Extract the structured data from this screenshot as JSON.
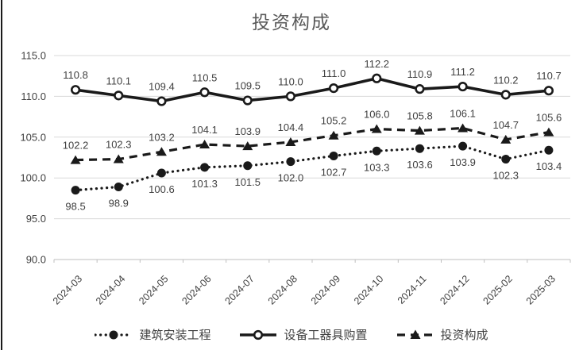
{
  "chart": {
    "colors": {
      "line": "#1a1a1a",
      "grid": "#d9d9d9",
      "axis": "#bfbfbf",
      "tick_label": "#404040",
      "data_label": "#404040",
      "title": "#595959"
    }
  },
  "chart_data": {
    "type": "line",
    "title": "投资构成",
    "categories": [
      "2024-03",
      "2024-04",
      "2024-05",
      "2024-06",
      "2024-07",
      "2024-08",
      "2024-09",
      "2024-10",
      "2024-11",
      "2024-12",
      "2025-02",
      "2025-03"
    ],
    "series": [
      {
        "name": "建筑安装工程",
        "marker": "filled-circle",
        "line_style": "dotted",
        "label_position": "below",
        "values": [
          98.5,
          98.9,
          100.6,
          101.3,
          101.5,
          102.0,
          102.7,
          103.3,
          103.6,
          103.9,
          102.3,
          103.4
        ]
      },
      {
        "name": "设备工器具购置",
        "marker": "open-circle",
        "line_style": "solid",
        "label_position": "above",
        "values": [
          110.8,
          110.1,
          109.4,
          110.5,
          109.5,
          110.0,
          111.0,
          112.2,
          110.9,
          111.2,
          110.2,
          110.7
        ]
      },
      {
        "name": "投资构成",
        "marker": "filled-triangle",
        "line_style": "dashed",
        "label_position": "above",
        "values": [
          102.2,
          102.3,
          103.2,
          104.1,
          103.9,
          104.4,
          105.2,
          106.0,
          105.8,
          106.1,
          104.7,
          105.6
        ]
      }
    ],
    "ylim": [
      90,
      115
    ],
    "yticks": [
      90,
      95,
      100,
      105,
      110,
      115
    ],
    "ytick_labels": [
      "90.0",
      "95.0",
      "100.0",
      "105.0",
      "110.0",
      "115.0"
    ],
    "grid": "horizontal",
    "legend_position": "bottom",
    "data_labels": "on"
  }
}
